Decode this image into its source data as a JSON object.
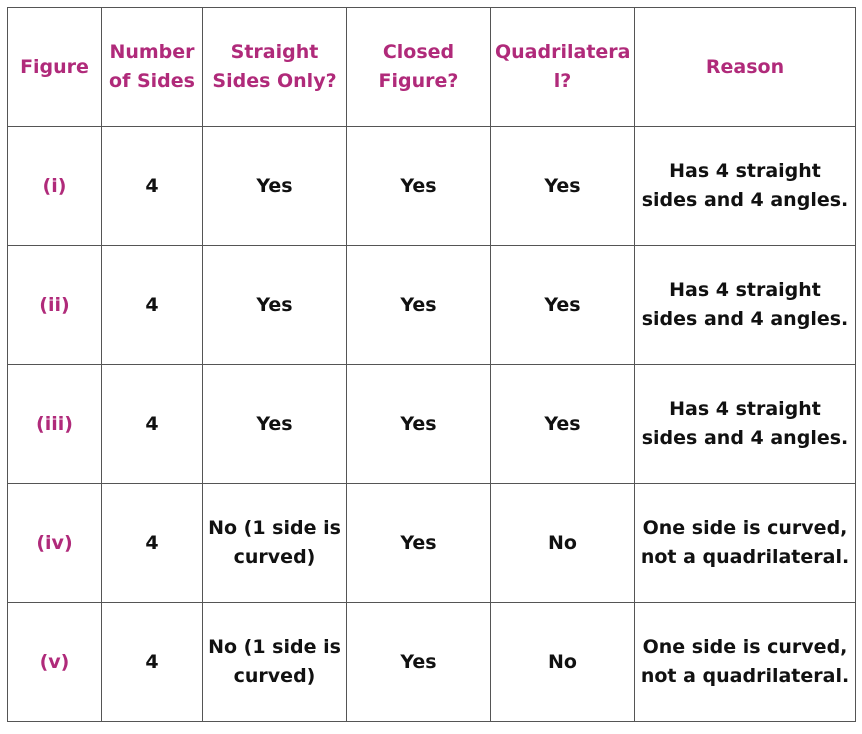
{
  "headers": [
    "Figure",
    "Number of Sides",
    "Straight Sides Only?",
    "Closed Figure?",
    "Quadrilatera l?",
    "Reason"
  ],
  "rows": [
    {
      "figure": "(i)",
      "sides": "4",
      "straight": "Yes",
      "closed": "Yes",
      "quad": "Yes",
      "reason": "Has 4 straight sides and 4 angles."
    },
    {
      "figure": "(ii)",
      "sides": "4",
      "straight": "Yes",
      "closed": "Yes",
      "quad": "Yes",
      "reason": "Has 4 straight sides and 4 angles."
    },
    {
      "figure": "(iii)",
      "sides": "4",
      "straight": "Yes",
      "closed": "Yes",
      "quad": "Yes",
      "reason": "Has 4 straight sides and 4 angles."
    },
    {
      "figure": "(iv)",
      "sides": "4",
      "straight": "No (1 side is curved)",
      "closed": "Yes",
      "quad": "No",
      "reason": "One side is curved, not a quadrilateral."
    },
    {
      "figure": "(v)",
      "sides": "4",
      "straight": "No (1 side is curved)",
      "closed": "Yes",
      "quad": "No",
      "reason": "One side is curved, not a quadrilateral."
    }
  ],
  "colors": {
    "header_text": "#b02a7a",
    "body_text": "#111111",
    "border": "#555555"
  }
}
